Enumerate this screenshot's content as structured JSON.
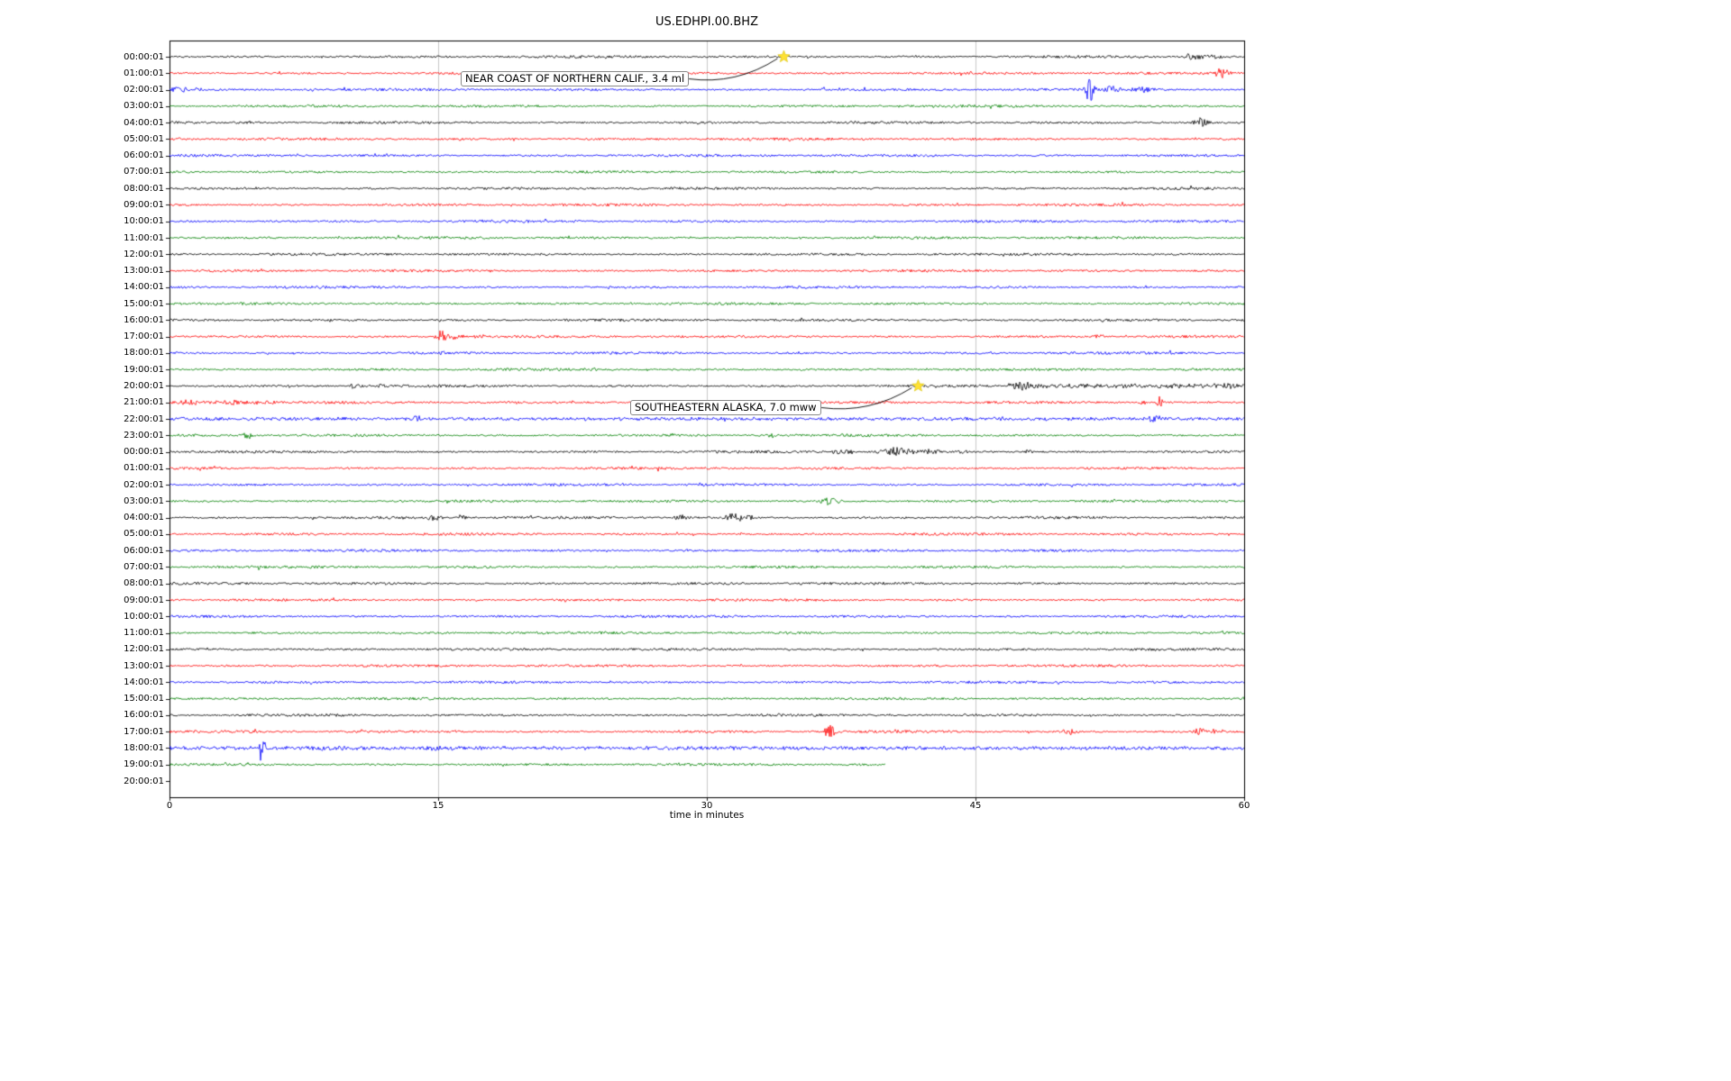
{
  "chart_data": {
    "type": "line",
    "subtype": "helicorder-seismogram",
    "title": "US.EDHPI.00.BHZ",
    "xlabel": "time in minutes",
    "x_range": [
      0,
      60
    ],
    "x_ticks": [
      "0",
      "15",
      "30",
      "45",
      "60"
    ],
    "grid_minutes": [
      15,
      30,
      45
    ],
    "legend": "none",
    "color_cycle": [
      "black",
      "red",
      "blue",
      "green"
    ],
    "colors": {
      "black": "#000000",
      "red": "#ff0000",
      "blue": "#0000ff",
      "green": "#008000",
      "grid": "#c9c9c9",
      "star": "#ffe135"
    },
    "annotations": [
      {
        "text": "NEAR COAST OF NORTHERN CALIF., 3.4 ml",
        "row": 0,
        "minute": 34.3,
        "box_x": 511,
        "box_y": 79
      },
      {
        "text": "SOUTHEASTERN ALASKA, 7.0 mww",
        "row": 20,
        "minute": 41.8,
        "box_x": 699,
        "box_y": 444
      }
    ],
    "rows": [
      {
        "label": "00:00:01",
        "color": "black",
        "events": [
          {
            "m": 57.2,
            "a": 5,
            "d": 1.0
          },
          {
            "m": 58.3,
            "a": 4,
            "d": 0.8
          }
        ]
      },
      {
        "label": "01:00:01",
        "color": "red",
        "events": [
          {
            "m": 57.9,
            "a": 3,
            "d": 0.4
          },
          {
            "m": 58.8,
            "a": 7,
            "d": 0.7
          }
        ]
      },
      {
        "label": "02:00:01",
        "color": "blue",
        "events": [
          {
            "m": 0.6,
            "a": 4,
            "d": 1.0
          },
          {
            "m": 1.6,
            "a": 3,
            "d": 0.8
          },
          {
            "m": 8.0,
            "a": 2.5,
            "d": 0.5
          },
          {
            "m": 36.6,
            "a": 3.5,
            "d": 0.6
          },
          {
            "m": 37.4,
            "a": 2.5,
            "d": 0.6
          },
          {
            "m": 51.4,
            "a": 16,
            "d": 0.5
          },
          {
            "m": 52.6,
            "a": 5,
            "d": 1.2
          },
          {
            "m": 54.3,
            "a": 4,
            "d": 1.5
          }
        ]
      },
      {
        "label": "03:00:01",
        "color": "green",
        "events": []
      },
      {
        "label": "04:00:01",
        "color": "black",
        "events": [
          {
            "m": 57.6,
            "a": 7,
            "d": 0.7
          }
        ]
      },
      {
        "label": "05:00:01",
        "color": "red",
        "events": []
      },
      {
        "label": "06:00:01",
        "color": "blue",
        "events": []
      },
      {
        "label": "07:00:01",
        "color": "green",
        "events": []
      },
      {
        "label": "08:00:01",
        "color": "black",
        "events": []
      },
      {
        "label": "09:00:01",
        "color": "red",
        "events": []
      },
      {
        "label": "10:00:01",
        "color": "blue",
        "events": []
      },
      {
        "label": "11:00:01",
        "color": "green",
        "events": []
      },
      {
        "label": "12:00:01",
        "color": "black",
        "events": []
      },
      {
        "label": "13:00:01",
        "color": "red",
        "events": []
      },
      {
        "label": "14:00:01",
        "color": "blue",
        "events": []
      },
      {
        "label": "15:00:01",
        "color": "green",
        "events": []
      },
      {
        "label": "16:00:01",
        "color": "black",
        "events": [
          {
            "m": 15.2,
            "a": 3,
            "d": 0.3
          }
        ]
      },
      {
        "label": "17:00:01",
        "color": "red",
        "events": [
          {
            "m": 15.2,
            "a": 11,
            "d": 0.5
          },
          {
            "m": 16.0,
            "a": 5,
            "d": 0.8
          },
          {
            "m": 17.3,
            "a": 3,
            "d": 0.8
          },
          {
            "m": 51.9,
            "a": 3.5,
            "d": 0.6
          }
        ]
      },
      {
        "label": "18:00:01",
        "color": "blue",
        "events": [
          {
            "m": 15.3,
            "a": 2.5,
            "d": 0.6
          }
        ]
      },
      {
        "label": "19:00:01",
        "color": "green",
        "events": [
          {
            "m": 23.7,
            "a": 2.5,
            "d": 0.3
          }
        ]
      },
      {
        "label": "20:00:01",
        "color": "black",
        "events": [
          {
            "m": 10.4,
            "a": 3.5,
            "d": 0.8
          },
          {
            "m": 11.9,
            "a": 3,
            "d": 0.6
          },
          {
            "m": 47.6,
            "a": 6,
            "d": 1.5
          },
          {
            "m": 55.0,
            "a": 3,
            "d": 2.0
          },
          {
            "m": 59.2,
            "a": 5,
            "d": 0.8
          }
        ],
        "noise": [
          {
            "f": 47,
            "t": 60,
            "a": 2.5
          }
        ]
      },
      {
        "label": "21:00:01",
        "color": "red",
        "events": [
          {
            "m": 1.2,
            "a": 4,
            "d": 1.0
          },
          {
            "m": 3.5,
            "a": 3,
            "d": 1.0
          },
          {
            "m": 54.3,
            "a": 4,
            "d": 0.4
          },
          {
            "m": 55.3,
            "a": 9,
            "d": 0.3
          }
        ],
        "noise": [
          {
            "f": 0,
            "t": 6,
            "a": 2.2
          }
        ]
      },
      {
        "label": "22:00:01",
        "color": "blue",
        "events": [
          {
            "m": 13.8,
            "a": 5,
            "d": 0.4
          },
          {
            "m": 27.9,
            "a": 3,
            "d": 0.5
          },
          {
            "m": 55.0,
            "a": 7,
            "d": 0.5
          }
        ],
        "noise": [
          {
            "f": 0,
            "t": 60,
            "a": 1.8
          }
        ]
      },
      {
        "label": "23:00:01",
        "color": "green",
        "events": [
          {
            "m": 4.4,
            "a": 6,
            "d": 0.6
          },
          {
            "m": 28.1,
            "a": 3.5,
            "d": 0.4
          },
          {
            "m": 33.6,
            "a": 4,
            "d": 0.4
          }
        ]
      },
      {
        "label": "00:00:01",
        "color": "black",
        "events": [
          {
            "m": 37.6,
            "a": 4,
            "d": 1.2
          },
          {
            "m": 40.6,
            "a": 5.5,
            "d": 1.8
          },
          {
            "m": 42.5,
            "a": 4,
            "d": 1.2
          },
          {
            "m": 44.3,
            "a": 3,
            "d": 0.8
          },
          {
            "m": 48.0,
            "a": 3,
            "d": 0.5
          }
        ]
      },
      {
        "label": "01:00:01",
        "color": "red",
        "events": []
      },
      {
        "label": "02:00:01",
        "color": "blue",
        "events": [
          {
            "m": 29.8,
            "a": 5,
            "d": 0.4
          }
        ]
      },
      {
        "label": "03:00:01",
        "color": "green",
        "events": [
          {
            "m": 36.9,
            "a": 6,
            "d": 0.9
          }
        ]
      },
      {
        "label": "04:00:01",
        "color": "black",
        "events": [
          {
            "m": 14.8,
            "a": 5,
            "d": 0.8
          },
          {
            "m": 16.3,
            "a": 4,
            "d": 0.6
          },
          {
            "m": 28.7,
            "a": 4,
            "d": 1.2
          },
          {
            "m": 31.6,
            "a": 6.5,
            "d": 1.0
          },
          {
            "m": 32.4,
            "a": 5,
            "d": 0.6
          }
        ]
      },
      {
        "label": "05:00:01",
        "color": "red",
        "events": []
      },
      {
        "label": "06:00:01",
        "color": "blue",
        "events": []
      },
      {
        "label": "07:00:01",
        "color": "green",
        "events": []
      },
      {
        "label": "08:00:01",
        "color": "black",
        "events": [
          {
            "m": 23.2,
            "a": 2,
            "d": 0.3
          }
        ]
      },
      {
        "label": "09:00:01",
        "color": "red",
        "events": []
      },
      {
        "label": "10:00:01",
        "color": "blue",
        "events": []
      },
      {
        "label": "11:00:01",
        "color": "green",
        "events": []
      },
      {
        "label": "12:00:01",
        "color": "black",
        "events": []
      },
      {
        "label": "13:00:01",
        "color": "red",
        "events": []
      },
      {
        "label": "14:00:01",
        "color": "blue",
        "events": []
      },
      {
        "label": "15:00:01",
        "color": "green",
        "events": []
      },
      {
        "label": "16:00:01",
        "color": "black",
        "events": []
      },
      {
        "label": "17:00:01",
        "color": "red",
        "events": [
          {
            "m": 36.9,
            "a": 11,
            "d": 0.5
          },
          {
            "m": 40.8,
            "a": 4,
            "d": 0.8
          },
          {
            "m": 50.2,
            "a": 4,
            "d": 1.0
          },
          {
            "m": 57.6,
            "a": 6,
            "d": 0.6
          },
          {
            "m": 58.3,
            "a": 4,
            "d": 0.4
          }
        ]
      },
      {
        "label": "18:00:01",
        "color": "blue",
        "events": [
          {
            "m": 3.1,
            "a": 4,
            "d": 0.6
          },
          {
            "m": 5.2,
            "a": 22,
            "d": 0.3
          },
          {
            "m": 8.2,
            "a": 4,
            "d": 1.5
          },
          {
            "m": 9.5,
            "a": 3.5,
            "d": 1.0
          },
          {
            "m": 14.6,
            "a": 4,
            "d": 1.2
          },
          {
            "m": 15.8,
            "a": 3,
            "d": 0.8
          }
        ],
        "noise": [
          {
            "f": 0,
            "t": 60,
            "a": 2.0
          }
        ]
      },
      {
        "label": "19:00:01",
        "color": "green",
        "end": 40,
        "events": [
          {
            "m": 3.1,
            "a": 3,
            "d": 0.4
          }
        ]
      },
      {
        "label": "20:00:01",
        "color": "black",
        "end": 0,
        "events": []
      }
    ]
  }
}
